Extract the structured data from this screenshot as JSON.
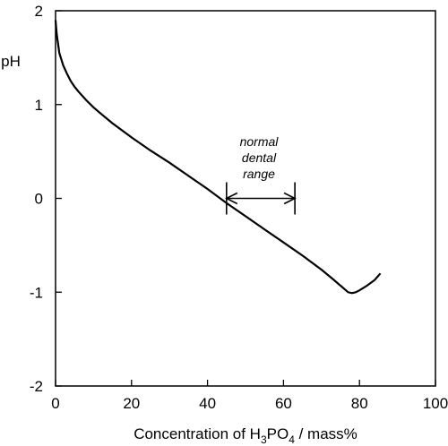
{
  "chart_data": {
    "type": "line",
    "title": "",
    "xlabel_parts": {
      "prefix": "Concentration of H",
      "sub1": "3",
      "mid": "PO",
      "sub2": "4",
      "suffix": " / mass%"
    },
    "ylabel": "pH",
    "xlim": [
      0,
      100
    ],
    "ylim": [
      -2,
      2
    ],
    "xticks": [
      0,
      20,
      40,
      60,
      80,
      100
    ],
    "yticks": [
      2,
      1,
      0,
      -1,
      -2
    ],
    "grid": false,
    "legend": "none",
    "series": [
      {
        "x": [
          0,
          0.3,
          1,
          2,
          3,
          4,
          5,
          6,
          8,
          10,
          12,
          15,
          20,
          25,
          30,
          35,
          40,
          45,
          50,
          55,
          60,
          65,
          70,
          73,
          75,
          77,
          78,
          79,
          80,
          82,
          84,
          85.5
        ],
        "y": [
          1.9,
          1.75,
          1.55,
          1.42,
          1.33,
          1.25,
          1.19,
          1.14,
          1.05,
          0.97,
          0.9,
          0.8,
          0.65,
          0.51,
          0.38,
          0.24,
          0.1,
          -0.05,
          -0.19,
          -0.33,
          -0.47,
          -0.61,
          -0.76,
          -0.86,
          -0.93,
          -1.0,
          -1.01,
          -1.0,
          -0.98,
          -0.93,
          -0.87,
          -0.8
        ]
      }
    ],
    "annotations": {
      "text_lines": [
        "normal",
        "dental",
        "range"
      ],
      "range_x": [
        45,
        63
      ],
      "arrow_y": 0.0
    }
  }
}
